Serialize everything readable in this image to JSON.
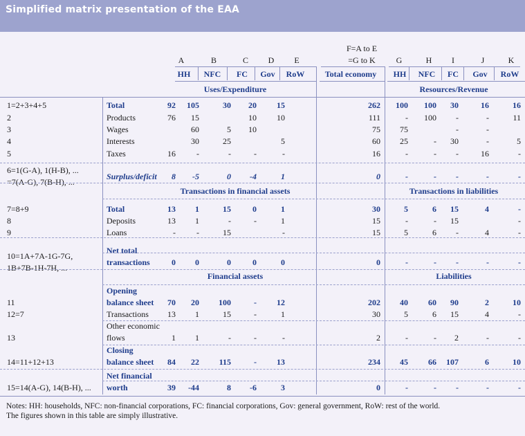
{
  "title": "Simplified matrix presentation of the EAA",
  "header": {
    "left_letters": [
      "A",
      "B",
      "C",
      "D",
      "E"
    ],
    "left_sectors": [
      "HH",
      "NFC",
      "FC",
      "Gov",
      "RoW"
    ],
    "total_formula_1": "F=A to E",
    "total_formula_2": "=G to K",
    "total_label": "Total economy",
    "right_letters": [
      "G",
      "H",
      "I",
      "J",
      "K"
    ],
    "right_sectors": [
      "HH",
      "NFC",
      "FC",
      "Gov",
      "RoW"
    ]
  },
  "sections": {
    "uses": "Uses/Expenditure",
    "resources": "Resources/Revenue",
    "fin_assets_tx": "Transactions in financial assets",
    "liab_tx": "Transactions in liabilities",
    "fin_assets": "Financial assets",
    "liabilities": "Liabilities"
  },
  "rows": [
    {
      "code": "1=2+3+4+5",
      "label": "Total",
      "style": "bold",
      "left": [
        "92",
        "105",
        "30",
        "20",
        "15"
      ],
      "total": "262",
      "right": [
        "100",
        "100",
        "30",
        "16",
        "16"
      ]
    },
    {
      "code": "2",
      "label": "Products",
      "style": "normal",
      "left": [
        "76",
        "15",
        "",
        "10",
        "10"
      ],
      "total": "111",
      "right": [
        "-",
        "100",
        "-",
        "-",
        "11"
      ]
    },
    {
      "code": "3",
      "label": "Wages",
      "style": "normal",
      "left": [
        "",
        "60",
        "5",
        "10",
        ""
      ],
      "total": "75",
      "right": [
        "75",
        "",
        "-",
        "-",
        ""
      ]
    },
    {
      "code": "4",
      "label": "Interests",
      "style": "normal",
      "left": [
        "",
        "30",
        "25",
        "",
        "5"
      ],
      "total": "60",
      "right": [
        "25",
        "-",
        "30",
        "-",
        "5"
      ]
    },
    {
      "code": "5",
      "label": "Taxes",
      "style": "normal",
      "left": [
        "16",
        "-",
        "-",
        "-",
        "-"
      ],
      "total": "16",
      "right": [
        "-",
        "-",
        "-",
        "16",
        "-"
      ]
    },
    {
      "code": "6=1(G-A), 1(H-B), ...",
      "code2": "=7(A-G), 7(B-H), ...",
      "label": "Surplus/deficit",
      "style": "bolditalic",
      "left": [
        "8",
        "-5",
        "0",
        "-4",
        "1"
      ],
      "total": "0",
      "right": [
        "-",
        "-",
        "-",
        "-",
        "-"
      ]
    },
    {
      "code": "7=8+9",
      "label": "Total",
      "style": "bold",
      "left": [
        "13",
        "1",
        "15",
        "0",
        "1"
      ],
      "total": "30",
      "right": [
        "5",
        "6",
        "15",
        "4",
        "-"
      ]
    },
    {
      "code": "8",
      "label": "Deposits",
      "style": "normal",
      "left": [
        "13",
        "1",
        "-",
        "-",
        "1"
      ],
      "total": "15",
      "right": [
        "-",
        "-",
        "15",
        "",
        "-"
      ]
    },
    {
      "code": "9",
      "label": "Loans",
      "style": "normal",
      "left": [
        "-",
        "-",
        "15",
        "",
        "-"
      ],
      "total": "15",
      "right": [
        "5",
        "6",
        "-",
        "4",
        "-"
      ]
    },
    {
      "code": "10=1A+7A-1G-7G,",
      "code2": "1B+7B-1H-7H, ...",
      "label": "Net total",
      "label2": "transactions",
      "style": "bold",
      "left": [
        "0",
        "0",
        "0",
        "0",
        "0"
      ],
      "total": "0",
      "right": [
        "-",
        "-",
        "-",
        "-",
        "-"
      ]
    },
    {
      "code": "11",
      "label": "Opening",
      "label2": "balance sheet",
      "style": "bold",
      "left": [
        "70",
        "20",
        "100",
        "-",
        "12"
      ],
      "total": "202",
      "right": [
        "40",
        "60",
        "90",
        "2",
        "10"
      ]
    },
    {
      "code": "12=7",
      "label": "Transactions",
      "style": "normal",
      "left": [
        "13",
        "1",
        "15",
        "-",
        "1"
      ],
      "total": "30",
      "right": [
        "5",
        "6",
        "15",
        "4",
        "-"
      ]
    },
    {
      "code": "13",
      "label": "Other economic",
      "label2": "flows",
      "style": "normal",
      "left": [
        "1",
        "1",
        "-",
        "-",
        "-"
      ],
      "total": "2",
      "right": [
        "-",
        "-",
        "2",
        "-",
        "-"
      ]
    },
    {
      "code": "14=11+12+13",
      "label": "Closing",
      "label2": "balance sheet",
      "style": "bold",
      "left": [
        "84",
        "22",
        "115",
        "-",
        "13"
      ],
      "total": "234",
      "right": [
        "45",
        "66",
        "107",
        "6",
        "10"
      ]
    },
    {
      "code": "15=14(A-G), 14(B-H), ...",
      "label": "Net financial",
      "label2": "worth",
      "style": "bold",
      "left": [
        "39",
        "-44",
        "8",
        "-6",
        "3"
      ],
      "total": "0",
      "right": [
        "-",
        "-",
        "-",
        "-",
        "-"
      ]
    }
  ],
  "notes": [
    "Notes: HH: households, NFC: non-financial corporations, FC: financial corporations, Gov: general government, RoW: rest of the world.",
    "The figures shown in this table are simply illustrative."
  ]
}
